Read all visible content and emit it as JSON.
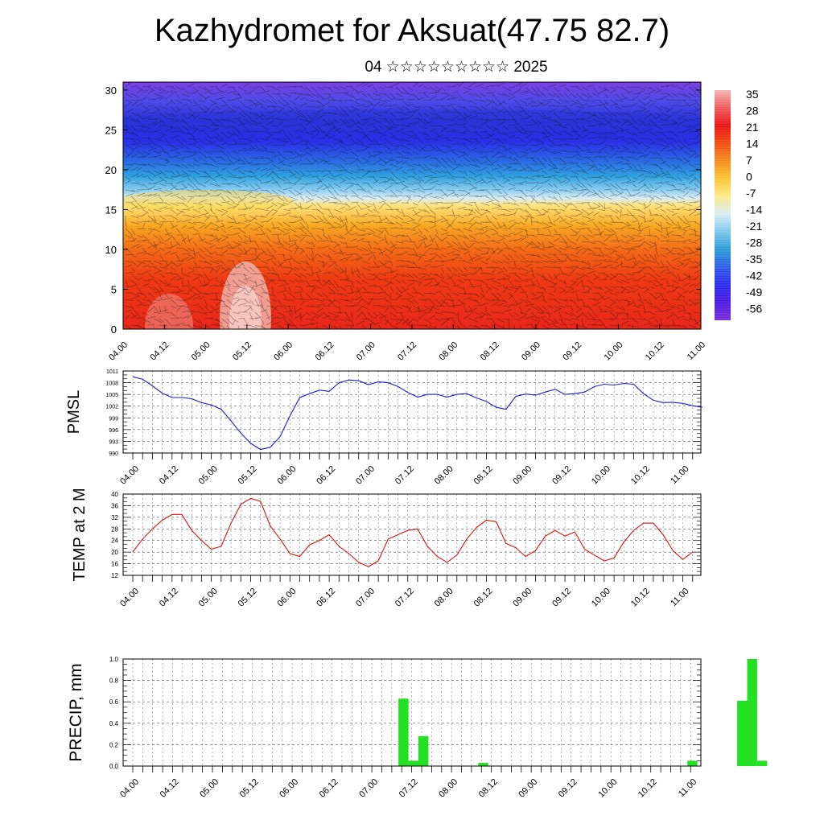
{
  "header": {
    "title": "Kazhydromet for Aksuat(47.75 82.7)",
    "subtitle": "04 ☆☆☆☆☆☆☆☆☆ 2025"
  },
  "time_labels": [
    "04.00",
    "04.12",
    "05.00",
    "05.12",
    "06.00",
    "06.12",
    "07.00",
    "07.12",
    "08.00",
    "08.12",
    "09.00",
    "09.12",
    "10.00",
    "10.12",
    "11.00"
  ],
  "chart_data": [
    {
      "type": "heatmap",
      "name": "vertical-cross-section",
      "y_ticks": [
        "0",
        "5",
        "10",
        "15",
        "20",
        "25",
        "30"
      ],
      "ylim": [
        0,
        31
      ],
      "x": "time_labels",
      "colorbar": {
        "labels": [
          "35",
          "28",
          "21",
          "14",
          "7",
          "0",
          "-7",
          "-14",
          "-21",
          "-28",
          "-35",
          "-42",
          "-49",
          "-56"
        ],
        "colors": [
          "#f2b3b3",
          "#ee5a5a",
          "#e81010",
          "#f04a10",
          "#f58a1a",
          "#fbc532",
          "#ffe98a",
          "#d8ecf3",
          "#7cc6ee",
          "#2a9ad8",
          "#2e5be8",
          "#2828e8",
          "#4a18e0",
          "#7a2ad8"
        ]
      },
      "wind_barbs": true
    },
    {
      "type": "line",
      "name": "pmsl",
      "ylabel": "PMSL",
      "ylim": [
        990,
        1011
      ],
      "y_ticks": [
        "1011",
        "1008",
        "1005",
        "1002",
        "999",
        "996",
        "993",
        "990"
      ],
      "color": "#1a1ad6",
      "values": [
        1009.5,
        1008.9,
        1007.2,
        1005.3,
        1004.2,
        1004.2,
        1003.9,
        1002.9,
        1002.3,
        1001.2,
        998.2,
        995.1,
        992.5,
        990.9,
        991.5,
        994.2,
        999.5,
        1004.2,
        1005.2,
        1006.1,
        1005.8,
        1008.0,
        1008.7,
        1008.5,
        1007.5,
        1008.2,
        1008.0,
        1007.0,
        1005.5,
        1004.3,
        1005.0,
        1005.0,
        1004.3,
        1005.0,
        1005.2,
        1004.1,
        1003.2,
        1001.7,
        1001.2,
        1004.5,
        1005.1,
        1004.8,
        1005.6,
        1006.3,
        1005.0,
        1005.2,
        1005.6,
        1007.0,
        1007.6,
        1007.4,
        1007.8,
        1007.6,
        1005.2,
        1003.5,
        1002.9,
        1003.0,
        1002.7,
        1002.1,
        1001.7
      ]
    },
    {
      "type": "line",
      "name": "temp-2m",
      "ylabel": "TEMP at 2 M",
      "ylim": [
        12,
        40
      ],
      "y_ticks": [
        "40",
        "36",
        "32",
        "28",
        "24",
        "20",
        "16",
        "12"
      ],
      "color": "#e01010",
      "values": [
        20.0,
        24.5,
        28.0,
        31.0,
        33.0,
        33.0,
        27.5,
        24.0,
        21.0,
        22.0,
        30.0,
        36.5,
        38.5,
        37.5,
        29.0,
        24.5,
        19.5,
        18.5,
        22.5,
        24.0,
        26.0,
        22.0,
        19.5,
        16.5,
        15.0,
        17.0,
        24.5,
        26.0,
        27.5,
        28.0,
        22.0,
        18.5,
        16.5,
        19.0,
        24.5,
        28.5,
        31.0,
        30.5,
        23.0,
        21.5,
        18.5,
        20.5,
        25.5,
        27.5,
        25.5,
        27.0,
        21.0,
        19.0,
        17.0,
        18.0,
        23.5,
        27.5,
        30.0,
        30.0,
        26.0,
        20.5,
        17.5,
        20.0
      ]
    },
    {
      "type": "bar",
      "name": "precip",
      "ylabel": "PRECIP, mm",
      "ylim": [
        0,
        1
      ],
      "y_ticks": [
        "1.0",
        "0.8",
        "0.6",
        "0.4",
        "0.2",
        "0.0"
      ],
      "color": "#22e022",
      "bars": [
        {
          "t": 27,
          "value": 0.63
        },
        {
          "t": 28,
          "value": 0.05
        },
        {
          "t": 29,
          "value": 0.28
        },
        {
          "t": 35,
          "value": 0.03
        },
        {
          "t": 56,
          "value": 0.05
        },
        {
          "t": 61,
          "value": 0.61
        },
        {
          "t": 62,
          "value": 1.0
        },
        {
          "t": 63,
          "value": 0.05
        }
      ]
    }
  ]
}
